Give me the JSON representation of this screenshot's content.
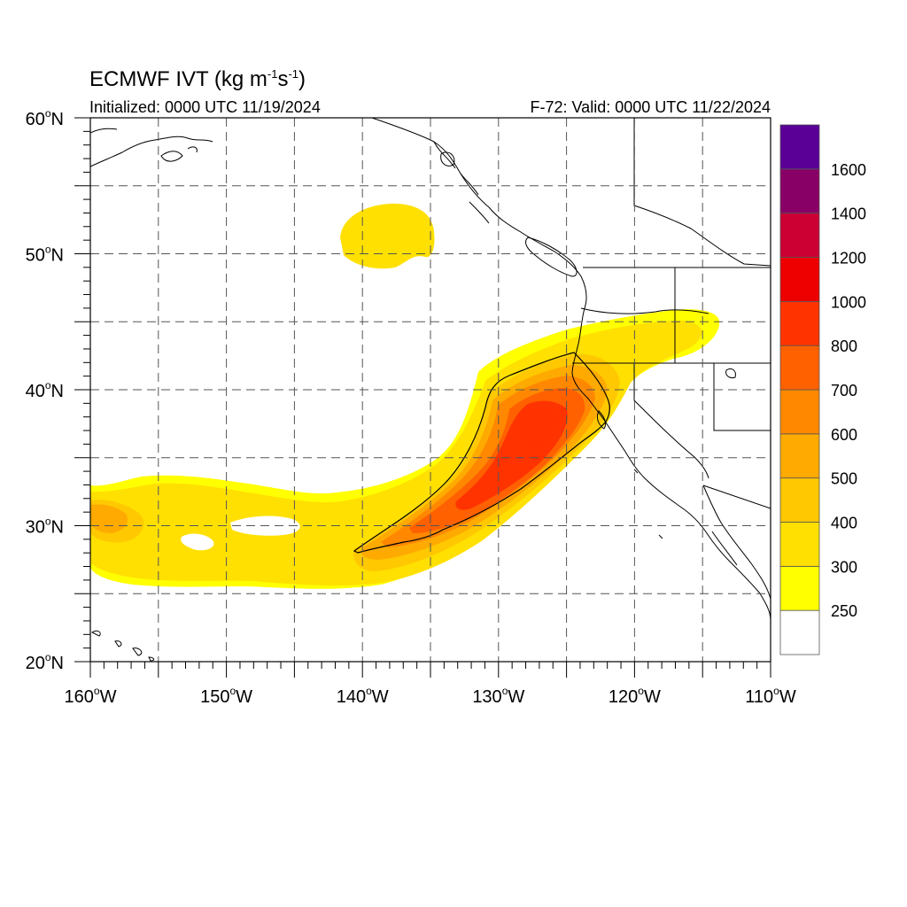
{
  "header": {
    "title_prefix": "ECMWF IVT (kg m",
    "title_exp1": "-1",
    "title_mid": "s",
    "title_exp2": "-1",
    "title_suffix": ")",
    "initialized": "Initialized: 0000 UTC 11/19/2024",
    "valid": "F-72: Valid: 0000 UTC 11/22/2024"
  },
  "map": {
    "lon_range": [
      -160,
      -110
    ],
    "lat_range": [
      20,
      60
    ],
    "lon_ticks": [
      {
        "lon": -160,
        "label": "160",
        "hemi": "W"
      },
      {
        "lon": -150,
        "label": "150",
        "hemi": "W"
      },
      {
        "lon": -140,
        "label": "140",
        "hemi": "W"
      },
      {
        "lon": -130,
        "label": "130",
        "hemi": "W"
      },
      {
        "lon": -120,
        "label": "120",
        "hemi": "W"
      },
      {
        "lon": -110,
        "label": "110",
        "hemi": "W"
      }
    ],
    "lat_ticks": [
      {
        "lat": 20,
        "label": "20",
        "hemi": "N"
      },
      {
        "lat": 30,
        "label": "30",
        "hemi": "N"
      },
      {
        "lat": 40,
        "label": "40",
        "hemi": "N"
      },
      {
        "lat": 50,
        "label": "50",
        "hemi": "N"
      },
      {
        "lat": 60,
        "label": "60",
        "hemi": "N"
      }
    ],
    "grid_lon_step": 5,
    "grid_lat_step": 5,
    "grid": "dashed"
  },
  "colorbar": {
    "levels": [
      "250",
      "300",
      "400",
      "500",
      "600",
      "700",
      "800",
      "1000",
      "1200",
      "1400",
      "1600"
    ],
    "colors": [
      "#ffffff",
      "#ffff00",
      "#ffe000",
      "#ffc800",
      "#ffaa00",
      "#ff8800",
      "#ff6000",
      "#ff3300",
      "#ee0000",
      "#cc0033",
      "#880066",
      "#5a0096"
    ]
  }
}
